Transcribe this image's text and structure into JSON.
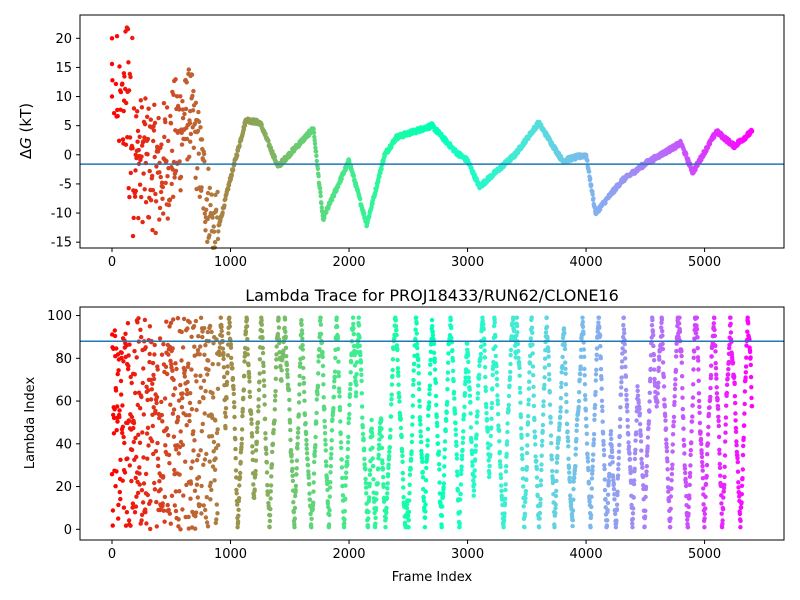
{
  "chart_data": [
    {
      "type": "scatter",
      "title": "",
      "xlabel": "",
      "ylabel_prefix": "Δ",
      "ylabel_symbol": "G",
      "ylabel_suffix": " (kT)",
      "xlim": [
        -270,
        5670
      ],
      "ylim": [
        -16,
        24
      ],
      "xticks": [
        0,
        1000,
        2000,
        3000,
        4000,
        5000
      ],
      "yticks": [
        -15,
        -10,
        -5,
        0,
        5,
        10,
        15,
        20
      ],
      "hline": -1.6,
      "hline_color": "#1f77b4",
      "colormap": "rainbow",
      "grid": false,
      "legend": "none",
      "n_frames": 5400,
      "sample_points": [
        {
          "x": 0,
          "y": 10
        },
        {
          "x": 0,
          "y": 20
        },
        {
          "x": 100,
          "y": 14
        },
        {
          "x": 200,
          "y": 0
        },
        {
          "x": 400,
          "y": -3
        },
        {
          "x": 660,
          "y": 7.5
        },
        {
          "x": 870,
          "y": -15
        },
        {
          "x": 1000,
          "y": -4
        },
        {
          "x": 1130,
          "y": 6
        },
        {
          "x": 1250,
          "y": 5.5
        },
        {
          "x": 1400,
          "y": -2
        },
        {
          "x": 1700,
          "y": 4.5
        },
        {
          "x": 1780,
          "y": -11
        },
        {
          "x": 2000,
          "y": -1
        },
        {
          "x": 2150,
          "y": -12
        },
        {
          "x": 2300,
          "y": 0
        },
        {
          "x": 2400,
          "y": 3
        },
        {
          "x": 2700,
          "y": 5
        },
        {
          "x": 2900,
          "y": 0.5
        },
        {
          "x": 3000,
          "y": -1
        },
        {
          "x": 3100,
          "y": -5.5
        },
        {
          "x": 3400,
          "y": 0
        },
        {
          "x": 3600,
          "y": 5.5
        },
        {
          "x": 3800,
          "y": -1
        },
        {
          "x": 4000,
          "y": 0
        },
        {
          "x": 4080,
          "y": -10
        },
        {
          "x": 4300,
          "y": -4.5
        },
        {
          "x": 4500,
          "y": -1.5
        },
        {
          "x": 4800,
          "y": 2
        },
        {
          "x": 4900,
          "y": -3
        },
        {
          "x": 5100,
          "y": 4
        },
        {
          "x": 5250,
          "y": 1.5
        },
        {
          "x": 5400,
          "y": 4
        }
      ]
    },
    {
      "type": "scatter",
      "title": "Lambda Trace for PROJ18433/RUN62/CLONE16",
      "xlabel": "Frame Index",
      "ylabel": "Lambda Index",
      "xlim": [
        -270,
        5670
      ],
      "ylim": [
        -5,
        104
      ],
      "xticks": [
        0,
        1000,
        2000,
        3000,
        4000,
        5000
      ],
      "yticks": [
        0,
        20,
        40,
        60,
        80,
        100
      ],
      "hline": 88,
      "hline_color": "#1f77b4",
      "colormap": "rainbow",
      "grid": false,
      "legend": "none",
      "n_frames": 5400,
      "lambda_range": [
        0,
        99
      ]
    }
  ]
}
